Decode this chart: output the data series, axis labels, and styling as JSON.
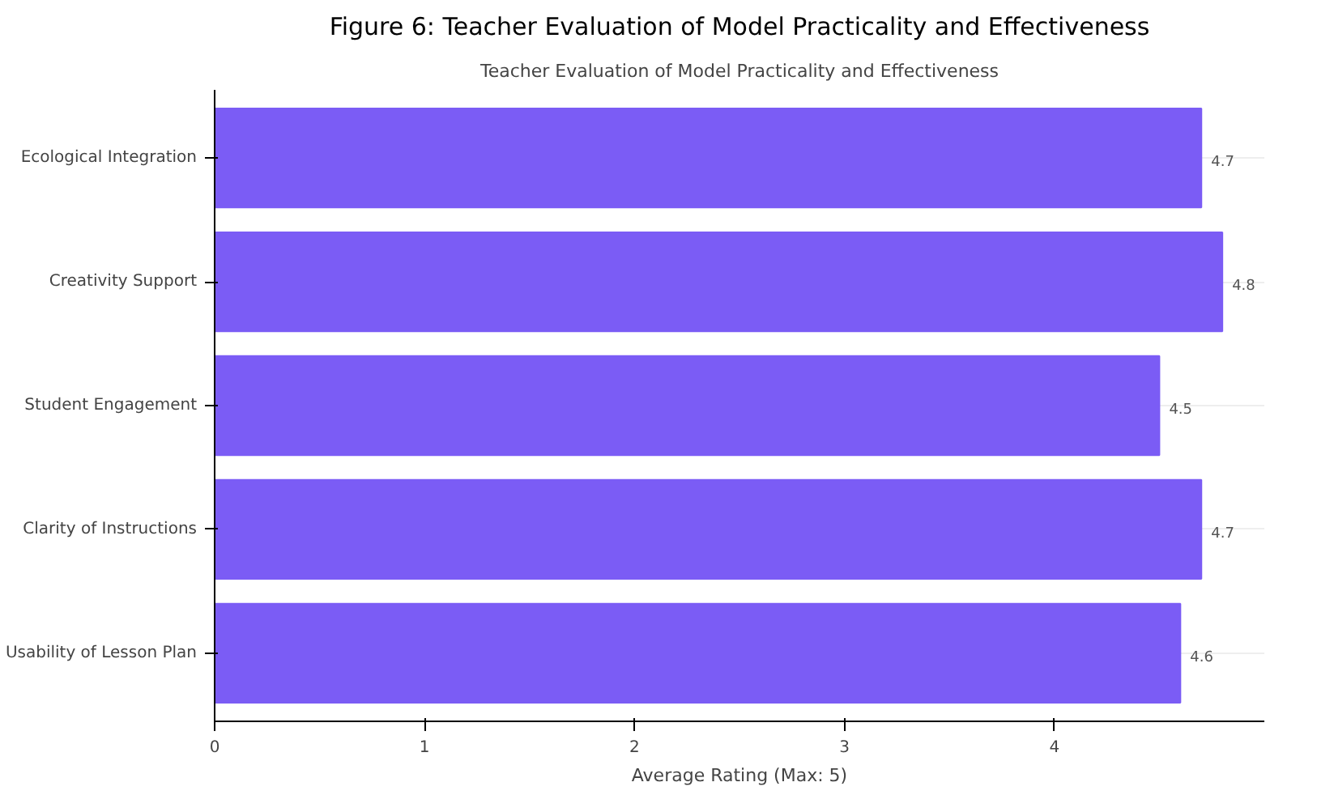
{
  "chart_data": {
    "type": "bar",
    "orientation": "horizontal",
    "title": "Figure 6: Teacher Evaluation of Model Practicality and Effectiveness",
    "subtitle": "Teacher Evaluation of Model Practicality and Effectiveness",
    "xlabel": "Average Rating (Max: 5)",
    "categories": [
      "Ecological Integration",
      "Creativity Support",
      "Student Engagement",
      "Clarity of Instructions",
      "Usability of Lesson Plan"
    ],
    "values": [
      4.7,
      4.8,
      4.5,
      4.7,
      4.6
    ],
    "color": "#7b5cf5",
    "data_labels": true,
    "xlim": [
      0,
      5
    ],
    "xticks": [
      0,
      1,
      2,
      3,
      4
    ],
    "grid": "y"
  }
}
